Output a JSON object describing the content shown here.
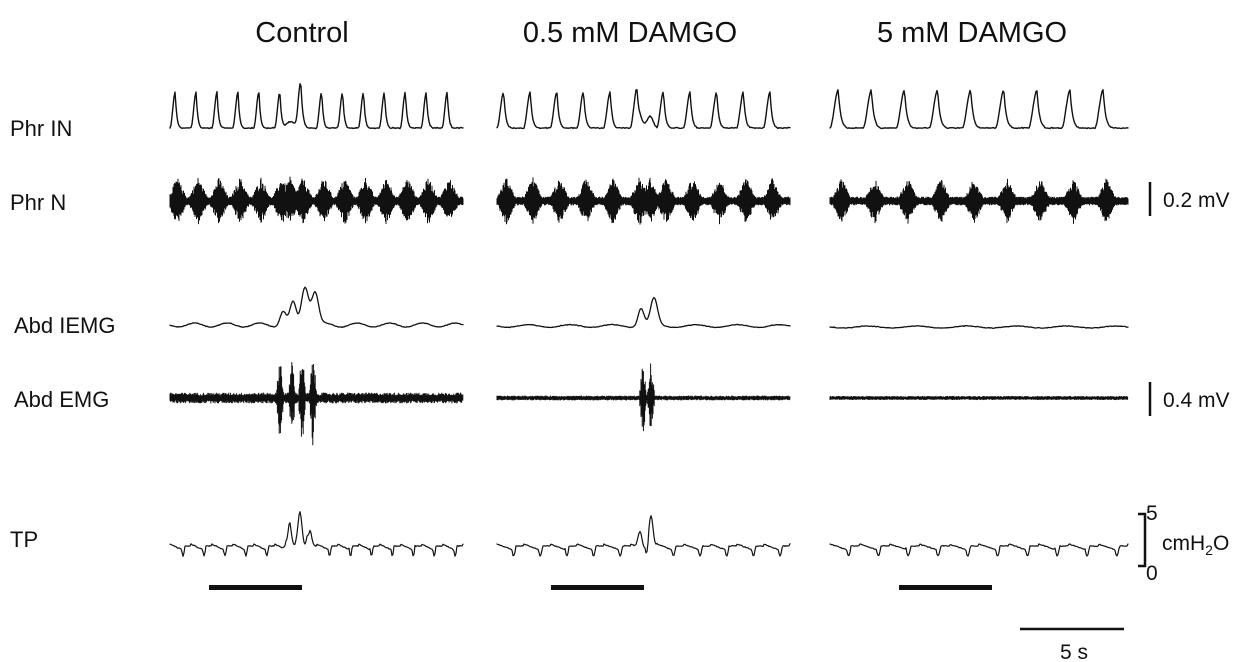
{
  "columns": [
    {
      "title": "Control"
    },
    {
      "title": "0.5 mM DAMGO"
    },
    {
      "title": "5 mM DAMGO"
    }
  ],
  "rows": [
    {
      "label": "Phr IN"
    },
    {
      "label": "Phr N"
    },
    {
      "label": "Abd IEMG"
    },
    {
      "label": "Abd EMG"
    },
    {
      "label": "TP"
    }
  ],
  "scale_bars": {
    "phr_n": "0.2 mV",
    "abd_emg": "0.4 mV",
    "tp_top": "5",
    "tp_bottom": "0",
    "tp_unit_main": "cmH",
    "tp_unit_sub": "2",
    "tp_unit_end": "O",
    "time": "5 s"
  },
  "colors": {
    "trace": "#111111",
    "background": "#ffffff"
  }
}
